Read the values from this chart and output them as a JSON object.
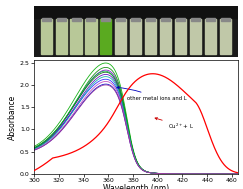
{
  "title": "",
  "xlabel": "Wavelength (nm)",
  "ylabel": "Absorbance",
  "xlim": [
    300,
    465
  ],
  "ylim": [
    0.0,
    2.55
  ],
  "yticks": [
    0.0,
    0.5,
    1.0,
    1.5,
    2.0,
    2.5
  ],
  "xticks": [
    300,
    320,
    340,
    360,
    380,
    400,
    420,
    440,
    460
  ],
  "background_color": "#ffffff",
  "label_other": "other metal ions and L",
  "label_cu": "Cu²⁺+ L",
  "cu_color": "#ff0000",
  "other_curves": [
    {
      "color": "#0000cc",
      "peak": 360,
      "sigma": 26,
      "amp": 1.62,
      "base": 0.42
    },
    {
      "color": "#2222ff",
      "peak": 360,
      "sigma": 27,
      "amp": 1.72,
      "base": 0.43
    },
    {
      "color": "#5500bb",
      "peak": 360,
      "sigma": 26,
      "amp": 1.82,
      "base": 0.44
    },
    {
      "color": "#8800cc",
      "peak": 360,
      "sigma": 26,
      "amp": 1.92,
      "base": 0.44
    },
    {
      "color": "#006600",
      "peak": 360,
      "sigma": 27,
      "amp": 1.88,
      "base": 0.43
    },
    {
      "color": "#008800",
      "peak": 360,
      "sigma": 26,
      "amp": 1.98,
      "base": 0.44
    },
    {
      "color": "#00aa00",
      "peak": 360,
      "sigma": 27,
      "amp": 2.08,
      "base": 0.44
    },
    {
      "color": "#00aa44",
      "peak": 359,
      "sigma": 26,
      "amp": 1.9,
      "base": 0.43
    },
    {
      "color": "#00aaaa",
      "peak": 360,
      "sigma": 26,
      "amp": 1.78,
      "base": 0.43
    },
    {
      "color": "#bb44bb",
      "peak": 360,
      "sigma": 26,
      "amp": 1.68,
      "base": 0.42
    },
    {
      "color": "#993399",
      "peak": 360,
      "sigma": 26,
      "amp": 1.6,
      "base": 0.42
    }
  ]
}
